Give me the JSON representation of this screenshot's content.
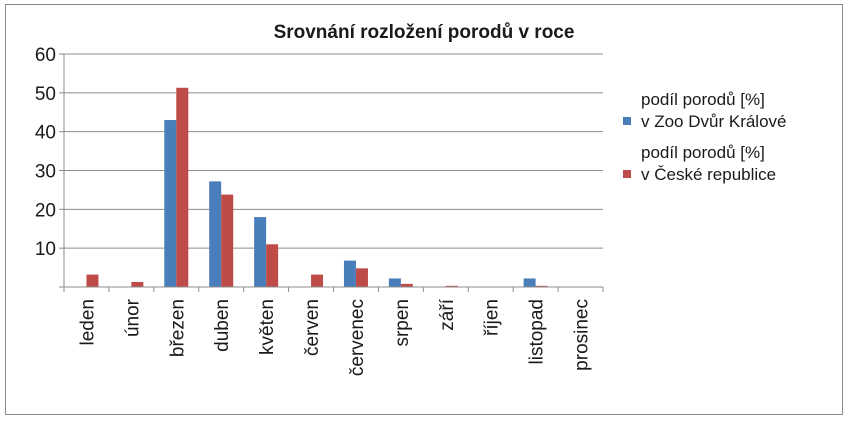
{
  "chart_data": {
    "type": "bar",
    "title": "Srovnání rozložení porodů v roce",
    "categories": [
      "leden",
      "únor",
      "březen",
      "duben",
      "květen",
      "červen",
      "červenec",
      "srpen",
      "září",
      "říjen",
      "listopad",
      "prosinec"
    ],
    "series": [
      {
        "name_lines": [
          "podíl porodů [%]",
          "v Zoo Dvůr Králové"
        ],
        "color": "#4a7ebb",
        "values": [
          0,
          0,
          43,
          27.2,
          18,
          0,
          6.8,
          2.2,
          0,
          0,
          2.2,
          0
        ]
      },
      {
        "name_lines": [
          "podíl porodů [%]",
          "v České republice"
        ],
        "color": "#be4b48",
        "values": [
          3.2,
          1.3,
          51.3,
          23.8,
          11,
          3.2,
          4.8,
          0.8,
          0.3,
          0,
          0.3,
          0
        ]
      }
    ],
    "ylim": [
      0,
      60
    ],
    "yticks": [
      0,
      10,
      20,
      30,
      40,
      50,
      60
    ],
    "ytick_labels": [
      "",
      "10",
      "20",
      "30",
      "40",
      "50",
      "60"
    ],
    "grid": true,
    "legend_position": "right"
  }
}
